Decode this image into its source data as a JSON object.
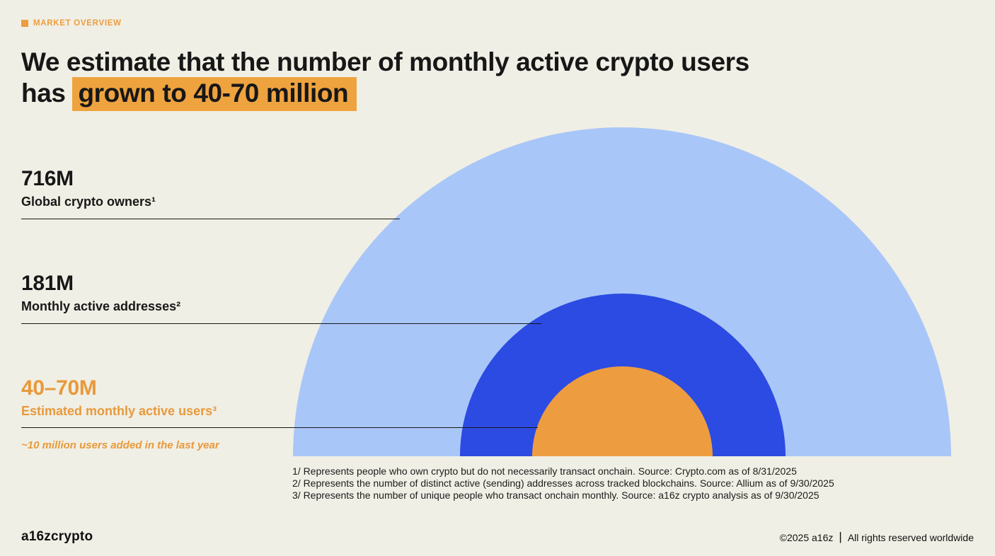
{
  "slide": {
    "eyebrow": "MARKET OVERVIEW",
    "title_line1": "We estimate that the number of monthly active crypto users",
    "title_line2_prefix": "has",
    "title_line2_highlight": "grown to 40-70 million"
  },
  "chart_data": {
    "type": "area",
    "variant": "nested-semicircles",
    "title": "We estimate that the number of monthly active crypto users has grown to 40-70 million",
    "series": [
      {
        "name": "Global crypto owners",
        "label": "Global crypto owners¹",
        "value_label": "716M",
        "value_millions": 716,
        "color": "#A9C6F8"
      },
      {
        "name": "Monthly active addresses",
        "label": "Monthly active addresses²",
        "value_label": "181M",
        "value_millions": 181,
        "color": "#2C4BE2"
      },
      {
        "name": "Estimated monthly active users",
        "label": "Estimated monthly active users³",
        "value_label": "40–70M",
        "value_millions_range": [
          40,
          70
        ],
        "color": "#ED9D40"
      }
    ],
    "annotation": "~10 million users added in the last year",
    "legend_position": "left-labels-with-leader-lines",
    "grid": false
  },
  "footnotes": [
    "1/ Represents people who own crypto but do not necessarily transact onchain. Source: Crypto.com as of 8/31/2025",
    "2/ Represents the number of distinct active (sending) addresses across tracked blockchains. Source: Allium as of 9/30/2025",
    "3/ Represents the number of unique people who transact onchain monthly. Source: a16z crypto analysis as of 9/30/2025"
  ],
  "footer": {
    "logo": "a16zcrypto",
    "copyright": "©2025 a16z",
    "divider": "|",
    "rights": "All rights reserved worldwide"
  },
  "colors": {
    "background": "#F0EFE5",
    "accent_orange": "#ED9D40",
    "highlight_orange": "#EEA33F",
    "orange_text": "#E8993B",
    "light_blue": "#A9C6F8",
    "royal_blue": "#2C4BE2",
    "text": "#171717"
  }
}
